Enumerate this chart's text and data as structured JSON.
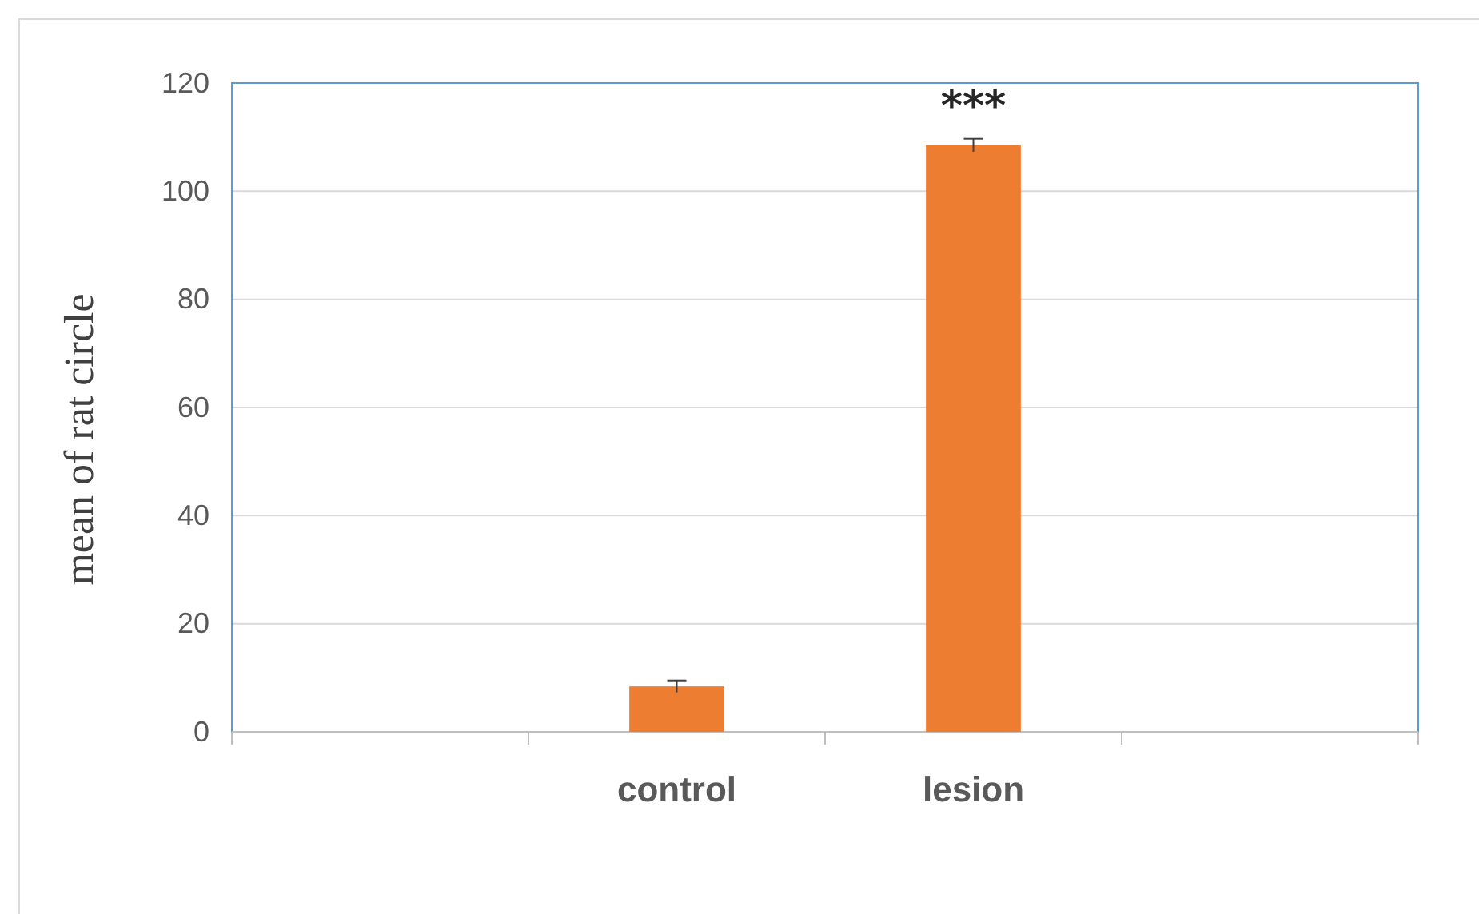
{
  "chart_data": {
    "type": "bar",
    "ylabel": "mean of rat circle",
    "categories": [
      null,
      "control",
      "lesion",
      null
    ],
    "values": [
      null,
      8.4,
      108.5,
      null
    ],
    "errors": [
      null,
      1.1,
      1.2,
      null
    ],
    "color": "#ed7d31",
    "ylim": [
      0,
      120
    ],
    "yticks": [
      0,
      20,
      40,
      60,
      80,
      100,
      120
    ],
    "grid": "y",
    "annotations": [
      "***"
    ]
  }
}
